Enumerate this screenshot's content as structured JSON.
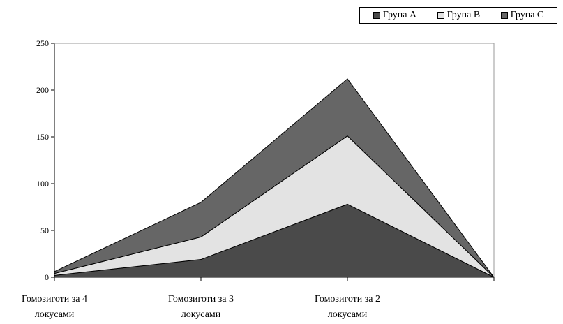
{
  "chart_data": {
    "type": "area",
    "stacked": true,
    "categories": [
      [
        "Гомозиготи за 4",
        "локусами"
      ],
      [
        "Гомозиготи за 3",
        "локусами"
      ],
      [
        "Гомозиготи за 2",
        "локусами"
      ],
      [
        ""
      ]
    ],
    "series": [
      {
        "name": "Група A",
        "values": [
          2,
          19,
          78,
          0
        ],
        "color": "#4a4a4a"
      },
      {
        "name": "Група B",
        "values": [
          2,
          24,
          73,
          0
        ],
        "color": "#e3e3e3"
      },
      {
        "name": "Група C",
        "values": [
          2,
          37,
          61,
          0
        ],
        "color": "#666666"
      }
    ],
    "ylim": [
      0,
      250
    ],
    "yticks": [
      0,
      50,
      100,
      150,
      200,
      250
    ],
    "title": "",
    "xlabel": "",
    "ylabel": "",
    "grid": false,
    "legend_position": "top-right"
  }
}
